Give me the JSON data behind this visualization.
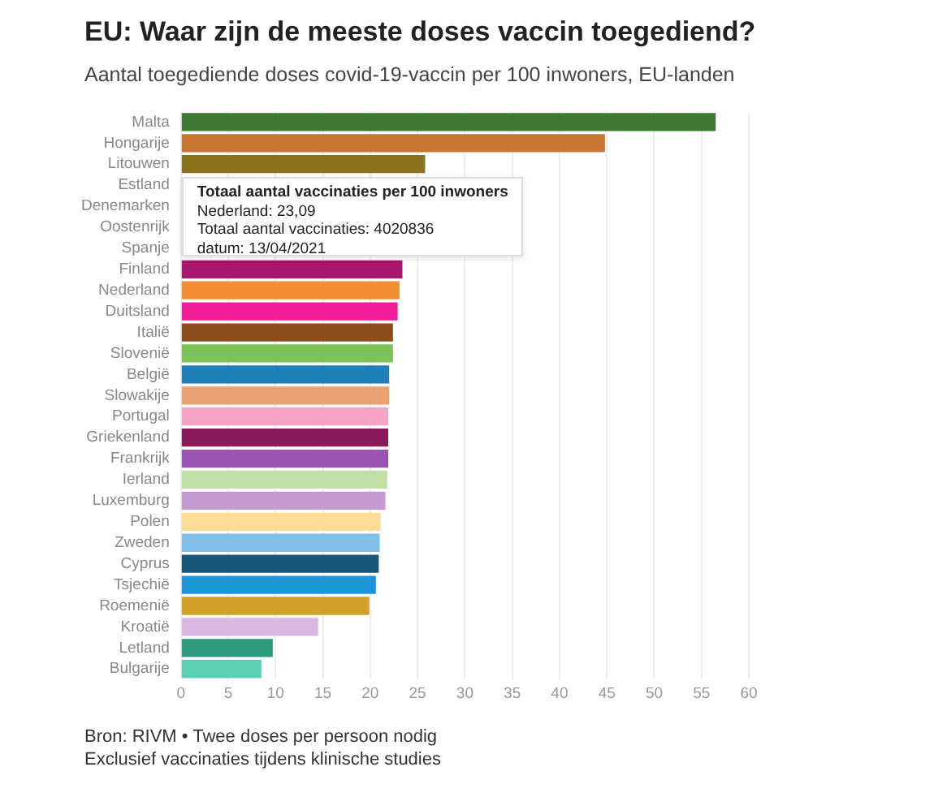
{
  "chart_data": {
    "type": "bar",
    "orientation": "horizontal",
    "title": "EU: Waar zijn de meeste doses vaccin toegediend?",
    "subtitle": "Aantal toegediende doses covid-19-vaccin per 100 inwoners, EU-landen",
    "categories": [
      "Malta",
      "Hongarije",
      "Litouwen",
      "Estland",
      "Denemarken",
      "Oostenrijk",
      "Spanje",
      "Finland",
      "Nederland",
      "Duitsland",
      "Italië",
      "Slovenië",
      "België",
      "Slowakije",
      "Portugal",
      "Griekenland",
      "Frankrijk",
      "Ierland",
      "Luxemburg",
      "Polen",
      "Zweden",
      "Cyprus",
      "Tsjechië",
      "Roemenië",
      "Kroatië",
      "Letland",
      "Bulgarije"
    ],
    "values": [
      56.5,
      44.8,
      25.8,
      null,
      null,
      null,
      null,
      23.4,
      23.09,
      22.9,
      22.4,
      22.4,
      22.0,
      22.0,
      21.9,
      21.9,
      21.9,
      21.8,
      21.6,
      21.1,
      21.0,
      20.9,
      20.6,
      19.9,
      14.5,
      9.7,
      8.5
    ],
    "colors": [
      "#3f7a35",
      "#c87533",
      "#8b7320",
      null,
      null,
      null,
      null,
      "#a8176e",
      "#f28d33",
      "#f01e97",
      "#8c4d1d",
      "#7dc35a",
      "#1f7fb8",
      "#e9a173",
      "#f4a3c4",
      "#8a1b59",
      "#9a54b4",
      "#c0dfa4",
      "#c39ad2",
      "#fddc96",
      "#80c0e8",
      "#1a567a",
      "#1c96d8",
      "#d1a227",
      "#d9b9e2",
      "#2d9a7d",
      "#5acfb5"
    ],
    "xlim": [
      0,
      60
    ],
    "xticks": [
      0,
      5,
      10,
      15,
      20,
      25,
      30,
      35,
      40,
      45,
      50,
      55,
      60
    ],
    "grid": "x",
    "annotations": [
      "Totaal aantal vaccinaties per 100 inwoners\nNederland: 23,09\nTotaal aantal vaccinaties: 4020836\ndatum: 13/04/2021",
      "Bron: RIVM • Twee doses per persoon nodig",
      "Exclusief vaccinaties tijdens klinische studies"
    ]
  }
}
